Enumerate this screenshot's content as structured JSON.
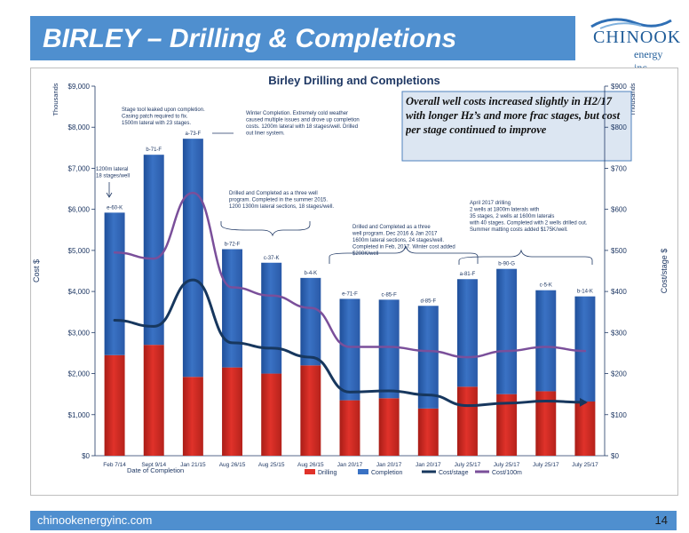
{
  "slide": {
    "title": "BIRLEY – Drilling & Completions",
    "footer": "chinookenergyinc.com",
    "page_number": "14"
  },
  "logo": {
    "name": "CHINOOK",
    "tagline": "energy inc"
  },
  "colors": {
    "drilling": "#e0322a",
    "completion": "#3a72c4",
    "cost_stage": "#17375e",
    "cost_100m": "#7a4f9a",
    "title_bar": "#4f8fcf"
  },
  "callout": "Overall well costs increased slightly in H2/17 with longer Hz’s and more frac stages, but cost per stage continued to improve",
  "chart_data": {
    "type": "bar",
    "title": "Birley Drilling and Completions",
    "xlabel": "Date of Completion",
    "ylabel_left": "Cost $",
    "ylabel_left_units": "Thousands",
    "ylabel_right": "Cost/stage $",
    "ylabel_right_units": "Thousands",
    "ylim_left": [
      0,
      9000
    ],
    "ylim_right": [
      0,
      900
    ],
    "left_ticks": [
      "$0",
      "$1,000",
      "$2,000",
      "$3,000",
      "$4,000",
      "$5,000",
      "$6,000",
      "$7,000",
      "$8,000",
      "$9,000"
    ],
    "right_ticks": [
      "$0",
      "$100",
      "$200",
      "$300",
      "$400",
      "$500",
      "$600",
      "$700",
      "$800",
      "$900"
    ],
    "categories": [
      "Feb 7/14",
      "Sept 9/14",
      "Jan 21/15",
      "Aug 26/15",
      "Aug 25/15",
      "Aug 26/15",
      "Jan 20/17",
      "Jan 20/17",
      "Jan 20/17",
      "July 25/17",
      "July 25/17",
      "July 25/17",
      "July 25/17"
    ],
    "well_labels": [
      "e-60-K",
      "b-71-F",
      "a-73-F",
      "b-72-F",
      "c-37-K",
      "b-4-K",
      "e-71-F",
      "c-85-F",
      "d-85-F",
      "a-81-F",
      "b-90-G",
      "c-5-K",
      "b-14-K"
    ],
    "stacked": true,
    "series": [
      {
        "name": "Drilling",
        "type": "bar",
        "axis": "left",
        "values": [
          2450,
          2700,
          1920,
          2150,
          2000,
          2200,
          1350,
          1400,
          1150,
          1680,
          1500,
          1570,
          1320
        ]
      },
      {
        "name": "Completion",
        "type": "bar",
        "axis": "left",
        "values": [
          3470,
          4630,
          5800,
          2880,
          2700,
          2130,
          2470,
          2400,
          2500,
          2620,
          3050,
          2460,
          2560
        ]
      },
      {
        "name": "Cost/stage",
        "type": "line",
        "axis": "right",
        "values": [
          330,
          315,
          428,
          275,
          262,
          240,
          155,
          158,
          148,
          122,
          128,
          133,
          130
        ]
      },
      {
        "name": "Cost/100m",
        "type": "line",
        "axis": "right",
        "values": [
          495,
          480,
          640,
          410,
          390,
          360,
          265,
          265,
          255,
          240,
          255,
          265,
          255
        ]
      }
    ],
    "legend_position": "bottom",
    "annotations": [
      "1200m lateral 18 stages/well",
      "Stage tool leaked upon completion. Casing patch required to fix. 1500m lateral with 23 stages.",
      "Winter Completion. Extremely cold weather caused multiple issues and drove up completion costs. 1200m lateral with 18 stages/well. Drilled out liner system.",
      "Drilled and Completed as a three well program. Completed in the summer 2015. 1200 1300m lateral sections, 18 stages/well.",
      "Drilled and Completed as a three well program. Dec 2016 & Jan 2017 1600m lateral sections, 24 stages/well. Completed in Feb, 2017. Winter cost added $200K/well",
      "April 2017 drilling 2 wells at 1800m laterals with 35 stages, 2 wells at 1600m laterals with 40 stages. Completed with 2 wells drilled out. Summer matting costs added $175K/well."
    ]
  }
}
